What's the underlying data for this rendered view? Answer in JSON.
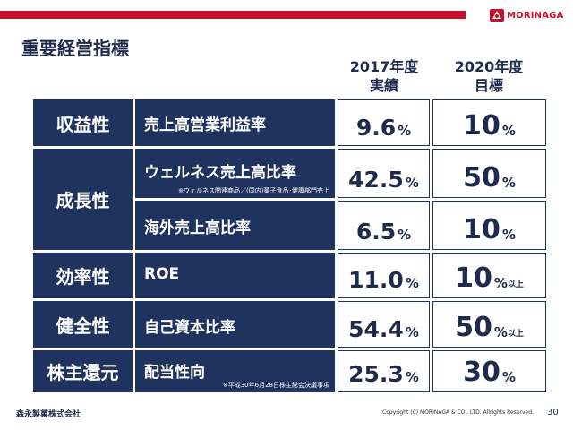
{
  "header": {
    "logo_text": "MORINAGA",
    "brand_color": "#c8102e"
  },
  "page_title": "重要経営指標",
  "columns": {
    "c2017_line1": "2017年度",
    "c2017_line2": "実績",
    "c2020_line1": "2020年度",
    "c2020_line2": "目標"
  },
  "rows": [
    {
      "category": "収益性",
      "indicator": "売上高営業利益率",
      "note": "",
      "v2017": "9.6",
      "v2020": "10",
      "v2020_suffix": ""
    },
    {
      "category": "成長性",
      "indicator": "ウェルネス売上高比率",
      "note": "※ウェルネス関連商品／(国内)菓子食品･健康部門売上",
      "v2017": "42.5",
      "v2020": "50",
      "v2020_suffix": ""
    },
    {
      "category": "",
      "indicator": "海外売上高比率",
      "note": "",
      "v2017": "6.5",
      "v2020": "10",
      "v2020_suffix": ""
    },
    {
      "category": "効率性",
      "indicator": "ROE",
      "note": "",
      "v2017": "11.0",
      "v2020": "10",
      "v2020_suffix": "以上"
    },
    {
      "category": "健全性",
      "indicator": "自己資本比率",
      "note": "",
      "v2017": "54.4",
      "v2020": "50",
      "v2020_suffix": "以上"
    },
    {
      "category": "株主還元",
      "indicator": "配当性向",
      "note": "※平成30年6月28日株主総会決議事項",
      "v2017": "25.3",
      "v2020": "30",
      "v2020_suffix": ""
    }
  ],
  "percent_sign": "%",
  "footer": {
    "company": "森永製菓株式会社",
    "copyright": "Copyright (C) MORINAGA & CO., LTD. Allrights Reserved.",
    "page_number": "30"
  },
  "colors": {
    "navy": "#20335f",
    "text": "#1f2a4d"
  }
}
